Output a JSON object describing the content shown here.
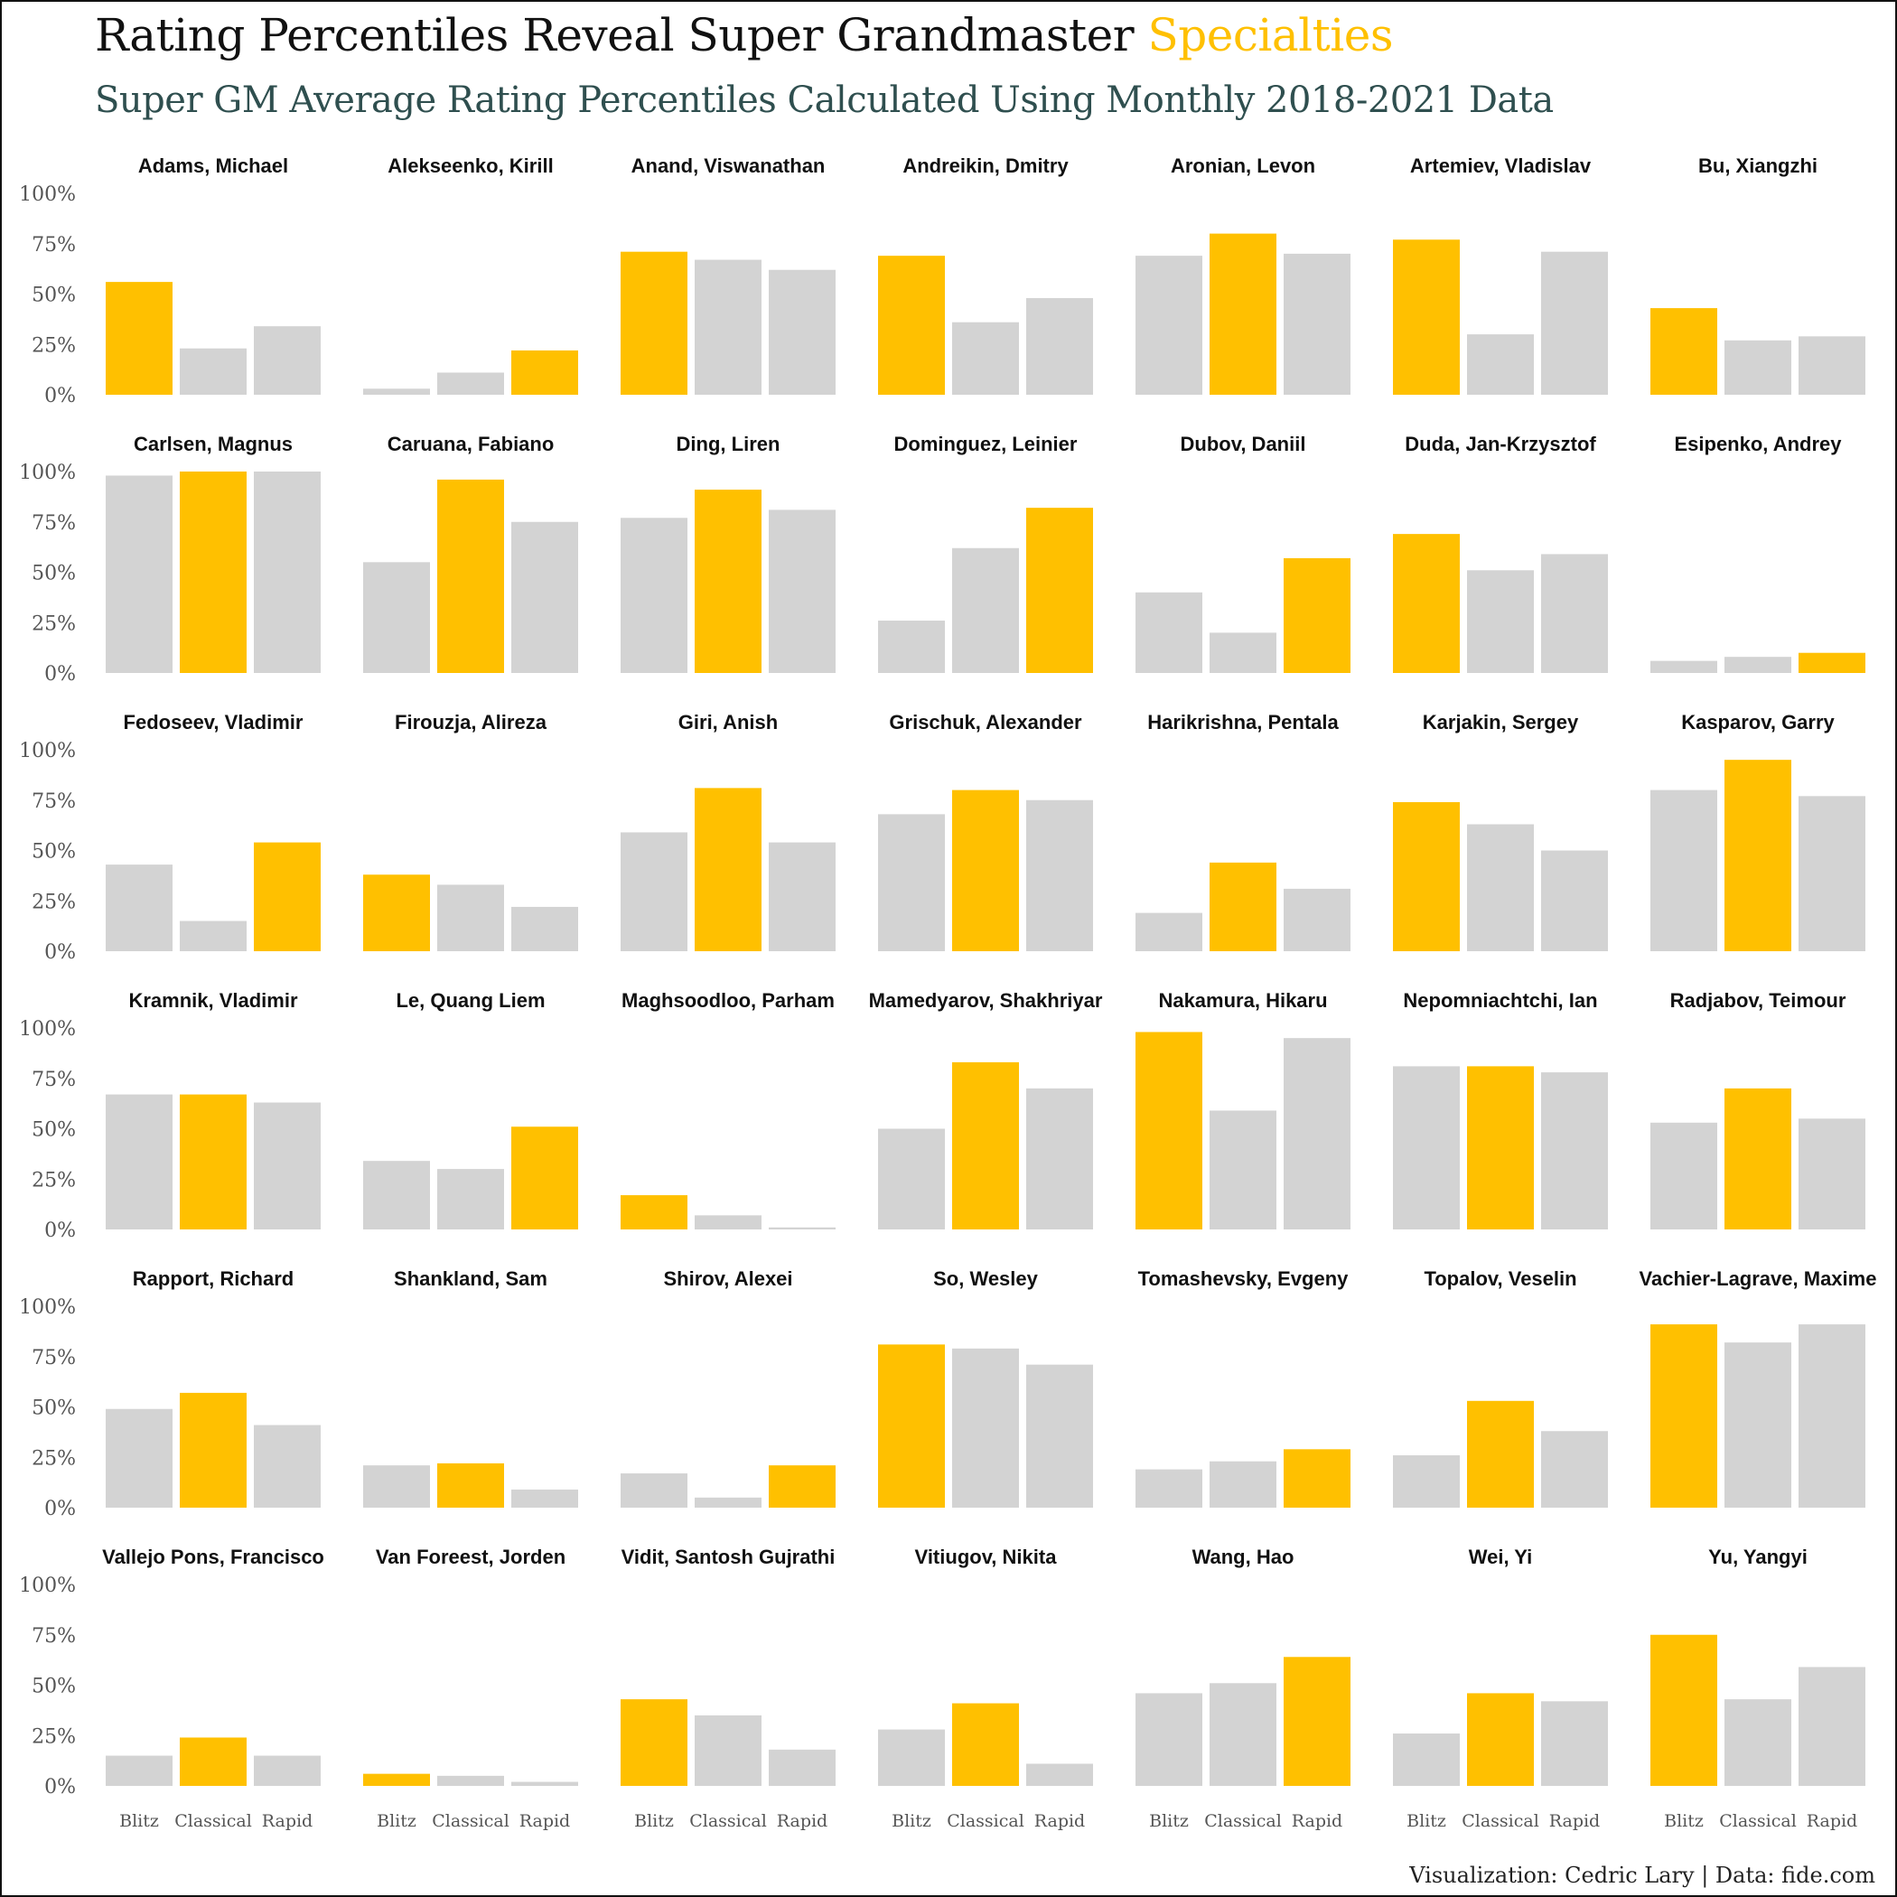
{
  "title": {
    "main": "Rating Percentiles Reveal Super Grandmaster ",
    "highlight": "Specialties"
  },
  "subtitle": "Super GM Average Rating Percentiles Calculated Using Monthly 2018-2021 Data",
  "caption": "Visualization: Cedric Lary | Data: fide.com",
  "colors": {
    "highlight": "#FFC000",
    "bar": "#D3D3D3",
    "subtitle": "#2F4F4F"
  },
  "chart_data": {
    "type": "bar",
    "layout": "small-multiples",
    "categories": [
      "Blitz",
      "Classical",
      "Rapid"
    ],
    "ylim": [
      0,
      100
    ],
    "yticks": [
      "0%",
      "25%",
      "50%",
      "75%",
      "100%"
    ],
    "panels": [
      {
        "name": "Adams, Michael",
        "values": [
          56,
          23,
          34
        ],
        "highlight": 0
      },
      {
        "name": "Alekseenko, Kirill",
        "values": [
          3,
          11,
          22
        ],
        "highlight": 2
      },
      {
        "name": "Anand, Viswanathan",
        "values": [
          71,
          67,
          62
        ],
        "highlight": 0
      },
      {
        "name": "Andreikin, Dmitry",
        "values": [
          69,
          36,
          48
        ],
        "highlight": 0
      },
      {
        "name": "Aronian, Levon",
        "values": [
          69,
          80,
          70
        ],
        "highlight": 1
      },
      {
        "name": "Artemiev, Vladislav",
        "values": [
          77,
          30,
          71
        ],
        "highlight": 0
      },
      {
        "name": "Bu, Xiangzhi",
        "values": [
          43,
          27,
          29
        ],
        "highlight": 0
      },
      {
        "name": "Carlsen, Magnus",
        "values": [
          98,
          100,
          100
        ],
        "highlight": 1
      },
      {
        "name": "Caruana, Fabiano",
        "values": [
          55,
          96,
          75
        ],
        "highlight": 1
      },
      {
        "name": "Ding, Liren",
        "values": [
          77,
          91,
          81
        ],
        "highlight": 1
      },
      {
        "name": "Dominguez, Leinier",
        "values": [
          26,
          62,
          82
        ],
        "highlight": 2
      },
      {
        "name": "Dubov, Daniil",
        "values": [
          40,
          20,
          57
        ],
        "highlight": 2
      },
      {
        "name": "Duda, Jan-Krzysztof",
        "values": [
          69,
          51,
          59
        ],
        "highlight": 0
      },
      {
        "name": "Esipenko, Andrey",
        "values": [
          6,
          8,
          10
        ],
        "highlight": 2
      },
      {
        "name": "Fedoseev, Vladimir",
        "values": [
          43,
          15,
          54
        ],
        "highlight": 2
      },
      {
        "name": "Firouzja, Alireza",
        "values": [
          38,
          33,
          22
        ],
        "highlight": 0
      },
      {
        "name": "Giri, Anish",
        "values": [
          59,
          81,
          54
        ],
        "highlight": 1
      },
      {
        "name": "Grischuk, Alexander",
        "values": [
          68,
          80,
          75
        ],
        "highlight": 1
      },
      {
        "name": "Harikrishna, Pentala",
        "values": [
          19,
          44,
          31
        ],
        "highlight": 1
      },
      {
        "name": "Karjakin, Sergey",
        "values": [
          74,
          63,
          50
        ],
        "highlight": 0
      },
      {
        "name": "Kasparov, Garry",
        "values": [
          80,
          95,
          77
        ],
        "highlight": 1
      },
      {
        "name": "Kramnik, Vladimir",
        "values": [
          67,
          67,
          63
        ],
        "highlight": 1
      },
      {
        "name": "Le, Quang Liem",
        "values": [
          34,
          30,
          51
        ],
        "highlight": 2
      },
      {
        "name": "Maghsoodloo, Parham",
        "values": [
          17,
          7,
          1
        ],
        "highlight": 0
      },
      {
        "name": "Mamedyarov, Shakhriyar",
        "values": [
          50,
          83,
          70
        ],
        "highlight": 1
      },
      {
        "name": "Nakamura, Hikaru",
        "values": [
          98,
          59,
          95
        ],
        "highlight": 0
      },
      {
        "name": "Nepomniachtchi, Ian",
        "values": [
          81,
          81,
          78
        ],
        "highlight": 1
      },
      {
        "name": "Radjabov, Teimour",
        "values": [
          53,
          70,
          55
        ],
        "highlight": 1
      },
      {
        "name": "Rapport, Richard",
        "values": [
          49,
          57,
          41
        ],
        "highlight": 1
      },
      {
        "name": "Shankland, Sam",
        "values": [
          21,
          22,
          9
        ],
        "highlight": 1
      },
      {
        "name": "Shirov, Alexei",
        "values": [
          17,
          5,
          21
        ],
        "highlight": 2
      },
      {
        "name": "So, Wesley",
        "values": [
          81,
          79,
          71
        ],
        "highlight": 0
      },
      {
        "name": "Tomashevsky, Evgeny",
        "values": [
          19,
          23,
          29
        ],
        "highlight": 2
      },
      {
        "name": "Topalov, Veselin",
        "values": [
          26,
          53,
          38
        ],
        "highlight": 1
      },
      {
        "name": "Vachier-Lagrave, Maxime",
        "values": [
          91,
          82,
          91
        ],
        "highlight": 0
      },
      {
        "name": "Vallejo Pons, Francisco",
        "values": [
          15,
          24,
          15
        ],
        "highlight": 1
      },
      {
        "name": "Van Foreest, Jorden",
        "values": [
          6,
          5,
          2
        ],
        "highlight": 0
      },
      {
        "name": "Vidit, Santosh Gujrathi",
        "values": [
          43,
          35,
          18
        ],
        "highlight": 0
      },
      {
        "name": "Vitiugov, Nikita",
        "values": [
          28,
          41,
          11
        ],
        "highlight": 1
      },
      {
        "name": "Wang, Hao",
        "values": [
          46,
          51,
          64
        ],
        "highlight": 2
      },
      {
        "name": "Wei, Yi",
        "values": [
          26,
          46,
          42
        ],
        "highlight": 1
      },
      {
        "name": "Yu, Yangyi",
        "values": [
          75,
          43,
          59
        ],
        "highlight": 0
      }
    ]
  }
}
